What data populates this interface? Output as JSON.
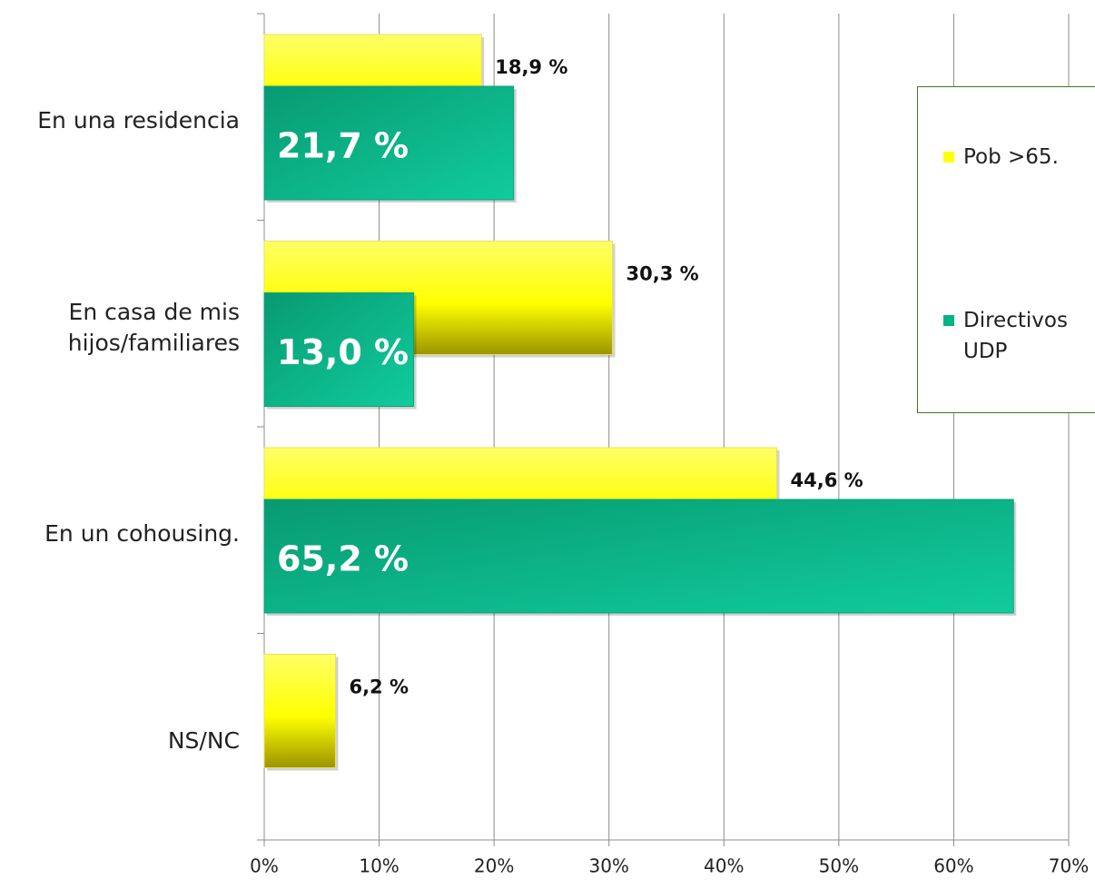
{
  "chart_data": {
    "type": "bar",
    "orientation": "horizontal",
    "categories": [
      "En una residencia",
      "En casa de mis hijos/familiares",
      "En un cohousing.",
      "NS/NC"
    ],
    "series": [
      {
        "name": "Pob >65.",
        "color": "#ffff00",
        "values": [
          18.9,
          30.3,
          44.6,
          6.2
        ],
        "value_labels": [
          "18,9 %",
          "30,3 %",
          "44,6 %",
          "6,2 %"
        ]
      },
      {
        "name": "Directivos UDP",
        "color": "#00b386",
        "values": [
          21.7,
          13.0,
          65.2,
          null
        ],
        "value_labels": [
          "21,7 %",
          "13,0 %",
          "65,2 %",
          null
        ]
      }
    ],
    "xlim": [
      0,
      70
    ],
    "xticks": [
      {
        "value": 0,
        "label": "0%"
      },
      {
        "value": 10,
        "label": "10%"
      },
      {
        "value": 20,
        "label": "20%"
      },
      {
        "value": 30,
        "label": "30%"
      },
      {
        "value": 40,
        "label": "40%"
      },
      {
        "value": 50,
        "label": "50%"
      },
      {
        "value": 60,
        "label": "60%"
      },
      {
        "value": 70,
        "label": "70%"
      }
    ],
    "grid": true,
    "legend": "right"
  }
}
